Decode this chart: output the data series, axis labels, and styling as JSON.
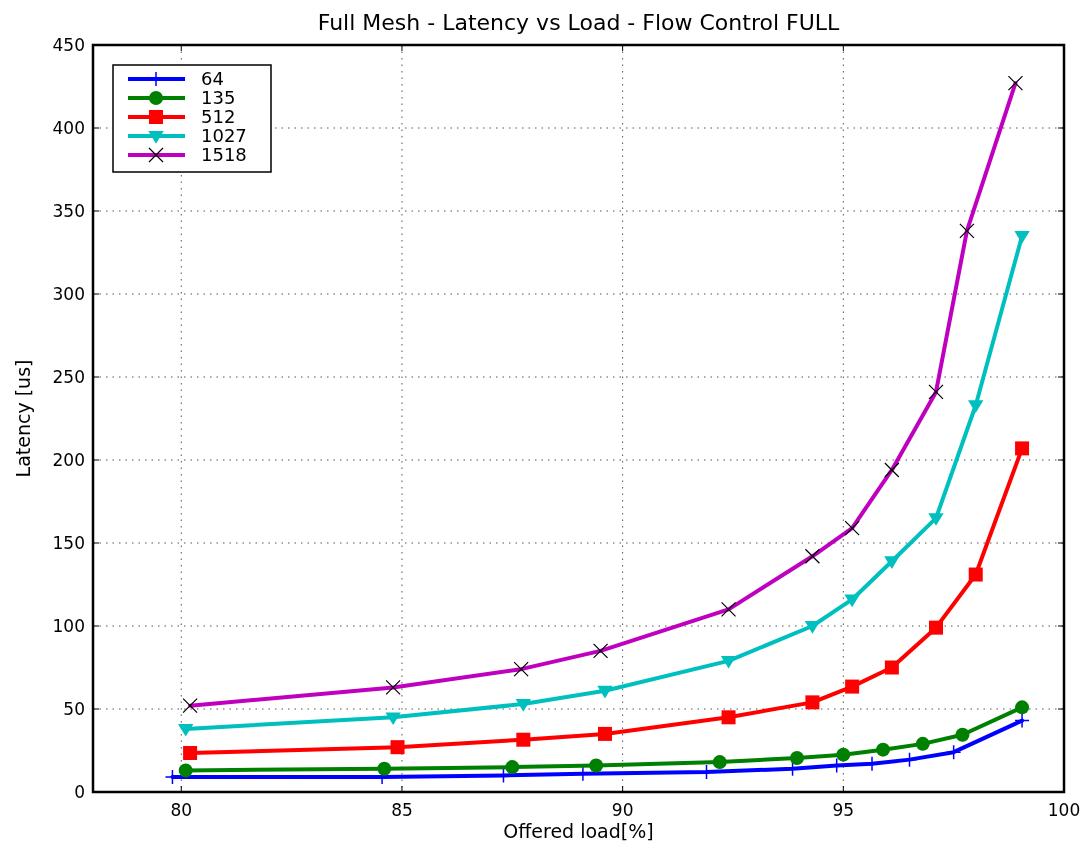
{
  "chart_data": {
    "type": "line",
    "title": "Full Mesh - Latency vs Load - Flow Control FULL",
    "xlabel": "Offered load[%]",
    "ylabel": "Latency [us]",
    "xlim": [
      78,
      100
    ],
    "xticks": [
      80,
      85,
      90,
      95,
      100
    ],
    "ylim": [
      0,
      450
    ],
    "yticks": [
      0,
      50,
      100,
      150,
      200,
      250,
      300,
      350,
      400,
      450
    ],
    "grid": true,
    "legend": "top left",
    "series": [
      {
        "name": "64",
        "color": "#0000ff",
        "marker": "plus",
        "x": [
          79.8,
          84.55,
          87.3,
          89.1,
          91.9,
          93.85,
          94.85,
          95.65,
          96.5,
          97.5,
          99.05
        ],
        "values": [
          9,
          9,
          10,
          11,
          12,
          14,
          16,
          17,
          19.5,
          24,
          43
        ]
      },
      {
        "name": "135",
        "color": "#008000",
        "marker": "circle",
        "x": [
          80.1,
          84.6,
          87.5,
          89.4,
          92.2,
          93.95,
          95.0,
          95.9,
          96.8,
          97.7,
          99.05
        ],
        "values": [
          13,
          14,
          15,
          16,
          18,
          20.5,
          22.5,
          25.5,
          29,
          34.5,
          51
        ]
      },
      {
        "name": "512",
        "color": "#ff0000",
        "marker": "square",
        "x": [
          80.2,
          84.9,
          87.75,
          89.6,
          92.4,
          94.3,
          95.2,
          96.1,
          97.1,
          98.0,
          99.05
        ],
        "values": [
          23.5,
          27,
          31.5,
          35,
          45,
          54,
          63.5,
          75,
          99,
          131,
          207
        ]
      },
      {
        "name": "1027",
        "color": "#00bfbf",
        "marker": "triangle_down",
        "x": [
          80.1,
          84.8,
          87.75,
          89.6,
          92.4,
          94.3,
          95.2,
          96.1,
          97.1,
          98.0,
          99.05
        ],
        "values": [
          38,
          45,
          53,
          61,
          79,
          100,
          116,
          139,
          165,
          233,
          335
        ]
      },
      {
        "name": "1518",
        "color": "#bf00bf",
        "marker": "cross",
        "x": [
          80.2,
          84.8,
          87.7,
          89.5,
          92.4,
          94.3,
          95.2,
          96.1,
          97.1,
          97.8,
          98.9
        ],
        "values": [
          52,
          63,
          74,
          85,
          110,
          142,
          159,
          194,
          241,
          338,
          427
        ]
      }
    ]
  }
}
